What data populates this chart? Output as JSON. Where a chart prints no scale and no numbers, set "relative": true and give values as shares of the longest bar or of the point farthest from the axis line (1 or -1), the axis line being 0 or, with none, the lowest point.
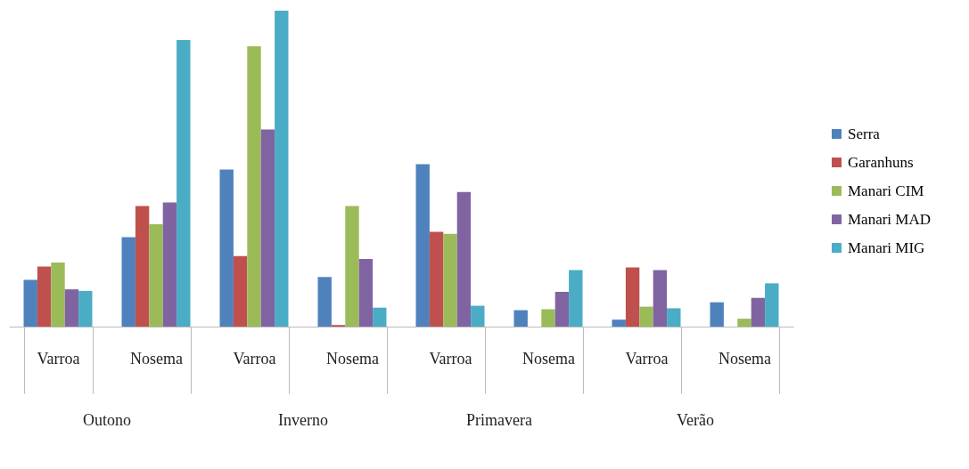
{
  "chart_data": {
    "type": "bar",
    "relative": true,
    "categories": [
      "Varroa",
      "Nosema",
      "Varroa",
      "Nosema",
      "Varroa",
      "Nosema",
      "Varroa",
      "Nosema"
    ],
    "annotations": [
      "Outono",
      "Inverno",
      "Primavera",
      "Verão"
    ],
    "legend": "right",
    "series": [
      {
        "name": "Serra",
        "color": "#4f81bd",
        "values": [
          0.148,
          0.283,
          0.497,
          0.157,
          0.514,
          0.052,
          0.022,
          0.077
        ]
      },
      {
        "name": "Garanhuns",
        "color": "#c0504d",
        "values": [
          0.19,
          0.382,
          0.223,
          0.005,
          0.3,
          0,
          0.187,
          0
        ]
      },
      {
        "name": "Manari CIM",
        "color": "#9bbb59",
        "values": [
          0.203,
          0.324,
          0.887,
          0.382,
          0.294,
          0.055,
          0.063,
          0.025
        ]
      },
      {
        "name": "Manari MAD",
        "color": "#8064a2",
        "values": [
          0.118,
          0.393,
          0.624,
          0.214,
          0.426,
          0.11,
          0.179,
          0.091
        ]
      },
      {
        "name": "Manari MIG",
        "color": "#4bacc6",
        "values": [
          0.113,
          0.907,
          1,
          0.06,
          0.066,
          0.179,
          0.058,
          0.137
        ]
      }
    ]
  }
}
